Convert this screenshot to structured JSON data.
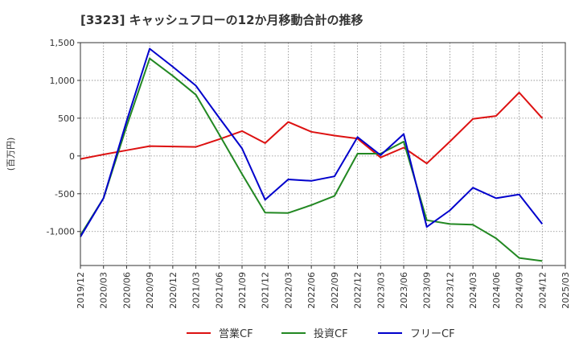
{
  "chart_data": {
    "type": "line",
    "title": "[3323]  キャッシュフローの12か月移動合計の推移",
    "ylabel": "(百万円)",
    "xlabel": "",
    "categories": [
      "2019/12",
      "2020/03",
      "2020/06",
      "2020/09",
      "2020/12",
      "2021/03",
      "2021/06",
      "2021/09",
      "2021/12",
      "2022/03",
      "2022/06",
      "2022/09",
      "2022/12",
      "2023/03",
      "2023/06",
      "2023/09",
      "2023/12",
      "2024/03",
      "2024/06",
      "2024/09",
      "2024/12",
      "2025/03"
    ],
    "yticks": [
      1500,
      1000,
      500,
      0,
      -500,
      -1000
    ],
    "ytick_labels": [
      "1,500",
      "1,000",
      "500",
      "0",
      "-500",
      "-1,000"
    ],
    "ylim": [
      -1450,
      1500
    ],
    "grid": true,
    "legend_position": "bottom",
    "series": [
      {
        "name": "営業CF",
        "color": "#dd1111",
        "values": [
          -40,
          20,
          75,
          130,
          125,
          120,
          220,
          330,
          170,
          450,
          320,
          270,
          230,
          -20,
          110,
          -100,
          190,
          490,
          530,
          840,
          500,
          null
        ]
      },
      {
        "name": "投資CF",
        "color": "#228822",
        "values": [
          -1050,
          -560,
          390,
          1290,
          1060,
          810,
          290,
          -240,
          -750,
          -755,
          -650,
          -530,
          30,
          30,
          190,
          -850,
          -900,
          -910,
          -1090,
          -1350,
          -1390,
          null
        ]
      },
      {
        "name": "フリーCF",
        "color": "#0000cc",
        "values": [
          -1070,
          -560,
          460,
          1420,
          1180,
          930,
          510,
          100,
          -580,
          -310,
          -330,
          -270,
          250,
          10,
          290,
          -940,
          -720,
          -420,
          -560,
          -510,
          -900,
          null
        ]
      }
    ]
  }
}
